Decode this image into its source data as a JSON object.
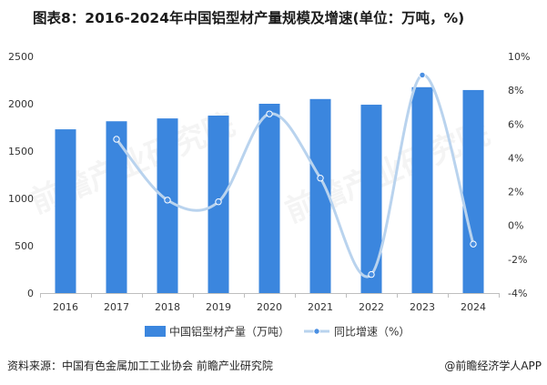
{
  "title": "图表8：2016-2024年中国铝型材产量规模及增速(单位：万吨，%)",
  "source": "资料来源：中国有色金属加工工业协会 前瞻产业研究院",
  "brand": "@前瞻经济学人APP",
  "watermark": "前瞻产业研究院",
  "colors": {
    "bar": "#3b86de",
    "line": "#b9d3ee",
    "marker": "#4a8fe2",
    "axis": "#bfbfbf"
  },
  "chart_data": {
    "type": "bar",
    "categories": [
      "2016",
      "2017",
      "2018",
      "2019",
      "2020",
      "2021",
      "2022",
      "2023",
      "2024"
    ],
    "series": [
      {
        "name": "中国铝型材产量（万吨）",
        "type": "bar",
        "axis": "left",
        "values": [
          1730,
          1815,
          1845,
          1875,
          2000,
          2050,
          1990,
          2175,
          2145
        ]
      },
      {
        "name": "同比增速（%）",
        "type": "line",
        "axis": "right",
        "values": [
          null,
          5.1,
          1.5,
          1.4,
          6.6,
          2.8,
          -2.9,
          8.9,
          -1.1
        ]
      }
    ],
    "ylim_left": [
      0,
      2500
    ],
    "yticks_left": [
      "0",
      "500",
      "1000",
      "1500",
      "2000",
      "2500"
    ],
    "ylim_right": [
      -4,
      10
    ],
    "yticks_right": [
      "-4%",
      "-2%",
      "0%",
      "2%",
      "4%",
      "6%",
      "8%",
      "10%"
    ],
    "legend_position": "bottom-center",
    "grid": false
  }
}
